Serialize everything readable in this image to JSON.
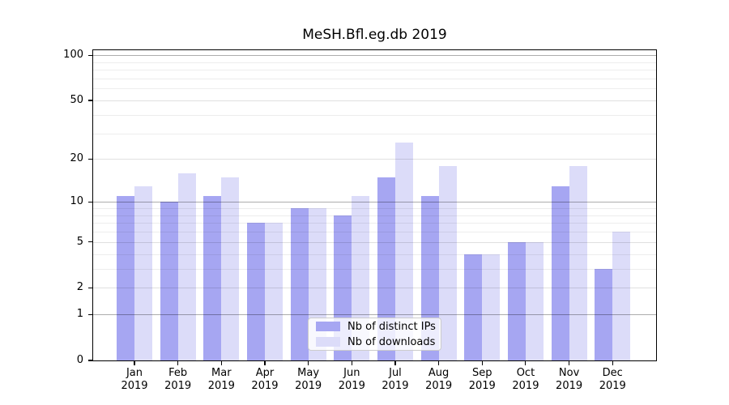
{
  "title": "MeSH.Bfl.eg.db 2019",
  "chart_data": {
    "type": "bar",
    "title": "MeSH.Bfl.eg.db 2019",
    "categories": [
      "Jan 2019",
      "Feb 2019",
      "Mar 2019",
      "Apr 2019",
      "May 2019",
      "Jun 2019",
      "Jul 2019",
      "Aug 2019",
      "Sep 2019",
      "Oct 2019",
      "Nov 2019",
      "Dec 2019"
    ],
    "series": [
      {
        "name": "Nb of distinct IPs",
        "color": "#a6a6f2",
        "values": [
          11,
          10,
          11,
          7,
          9,
          8,
          15,
          11,
          4,
          5,
          13,
          3
        ]
      },
      {
        "name": "Nb of downloads",
        "color": "#dcdcf9",
        "values": [
          13,
          16,
          15,
          7,
          9,
          11,
          26,
          18,
          4,
          5,
          18,
          6
        ]
      }
    ],
    "xlabel": "",
    "ylabel": "",
    "y_axis": {
      "scale": "log1p",
      "ylim": [
        0,
        108
      ],
      "ticks": [
        0,
        1,
        2,
        5,
        10,
        20,
        50,
        100
      ],
      "major_line_ticks": [
        1,
        10,
        100
      ],
      "mid_line_ticks": [
        2,
        5,
        20,
        50
      ],
      "minor_line_ticks": [
        3,
        4,
        6,
        7,
        8,
        9,
        30,
        40,
        60,
        70,
        80,
        90
      ]
    },
    "grid": true,
    "legend": {
      "position": "lower center"
    }
  }
}
